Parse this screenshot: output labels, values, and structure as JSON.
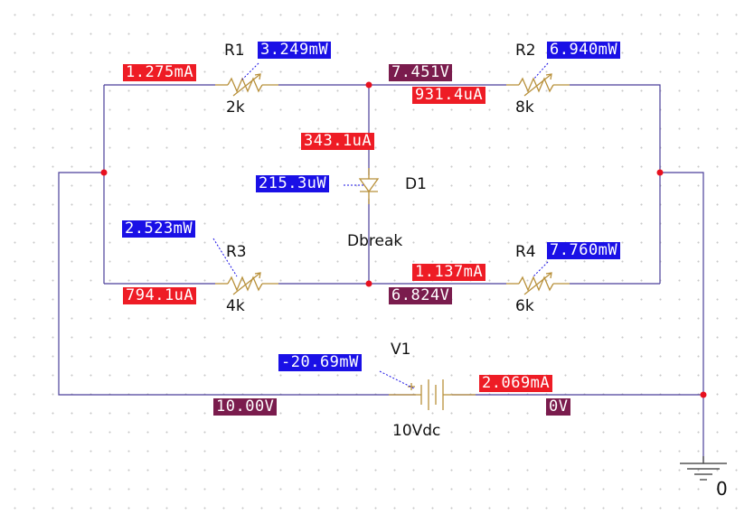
{
  "components": {
    "r1": {
      "name": "R1",
      "value": "2k"
    },
    "r2": {
      "name": "R2",
      "value": "8k"
    },
    "r3": {
      "name": "R3",
      "value": "4k"
    },
    "r4": {
      "name": "R4",
      "value": "6k"
    },
    "d1": {
      "name": "D1",
      "model": "Dbreak"
    },
    "v1": {
      "name": "V1",
      "value": "10Vdc"
    },
    "ground": {
      "name": "0"
    }
  },
  "probes": {
    "r1_current": "1.275mA",
    "r1_power": "3.249mW",
    "r2_current": "931.4uA",
    "r2_power": "6.940mW",
    "r3_current": "794.1uA",
    "r3_power": "2.523mW",
    "r4_current": "1.137mA",
    "r4_power": "7.760mW",
    "d1_current": "343.1uA",
    "d1_power": "215.3uW",
    "v1_current": "2.069mA",
    "v1_power": "-20.69mW",
    "node_top_voltage": "7.451V",
    "node_bottom_voltage": "6.824V",
    "node_source_voltage": "10.00V",
    "node_ground_voltage": "0V"
  },
  "colors": {
    "current": "#ee1c25",
    "power": "#1a10e6",
    "voltage": "#7a1c4d",
    "wire": "#4b3f9a",
    "component": "#b8903a",
    "junction": "#e8101e"
  }
}
